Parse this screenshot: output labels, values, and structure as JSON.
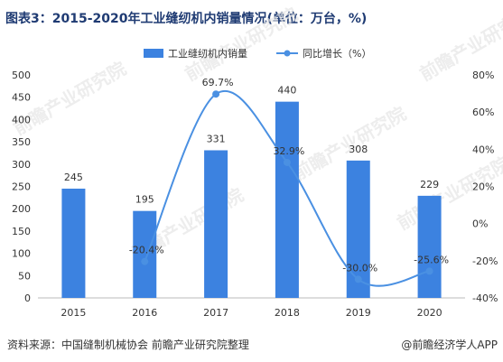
{
  "chart_data": {
    "type": "bar",
    "title": "图表3：2015-2020年工业缝纫机内销量情况(单位：万台，%)",
    "categories": [
      "2015",
      "2016",
      "2017",
      "2018",
      "2019",
      "2020"
    ],
    "series": [
      {
        "name": "工业缝纫机内销量",
        "type": "bar",
        "axis": "left",
        "values": [
          245,
          195,
          331,
          440,
          308,
          229
        ],
        "labels": [
          "245",
          "195",
          "331",
          "440",
          "308",
          "229"
        ]
      },
      {
        "name": "同比增长（%）",
        "type": "line",
        "axis": "right",
        "smooth": true,
        "values": [
          null,
          -20.4,
          69.7,
          32.9,
          -30.0,
          -25.6
        ],
        "labels": [
          "",
          "-20.4%",
          "69.7%",
          "32.9%",
          "-30.0%",
          "-25.6%"
        ]
      }
    ],
    "y_left": {
      "min": 0,
      "max": 500,
      "ticks": [
        "0",
        "50",
        "100",
        "150",
        "200",
        "250",
        "300",
        "350",
        "400",
        "450",
        "500"
      ]
    },
    "y_right": {
      "min": -40,
      "max": 80,
      "ticks": [
        "-40%",
        "-20%",
        "0%",
        "20%",
        "40%",
        "60%",
        "80%"
      ]
    },
    "legend_position": "top-center",
    "grid": false,
    "colors": {
      "bar": "#3c82e0",
      "line": "#4a90e2",
      "title": "#1f3b73",
      "axis": "#bbbbbb",
      "text": "#333333"
    }
  },
  "footer": {
    "source": "资料来源：中国缝制机械协会 前瞻产业研究院整理",
    "brand": "@前瞻经济学人APP"
  }
}
